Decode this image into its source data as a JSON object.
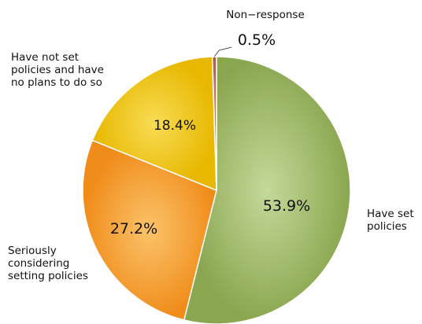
{
  "chart_data": {
    "type": "pie",
    "title": "",
    "slices": [
      {
        "label": "Have set policies",
        "label_lines": [
          "Have set",
          "policies"
        ],
        "value": 53.9,
        "value_label": "53.9%",
        "color": "#9dbb61"
      },
      {
        "label": "Seriously considering setting policies",
        "label_lines": [
          "Seriously",
          "considering",
          "setting policies"
        ],
        "value": 27.2,
        "value_label": "27.2%",
        "color": "#f6a030"
      },
      {
        "label": "Have not set policies and have no plans to do so",
        "label_lines": [
          "Have not set",
          "policies and have",
          "no plans to do so"
        ],
        "value": 18.4,
        "value_label": "18.4%",
        "color": "#f2c80a"
      },
      {
        "label": "Non-response",
        "label_lines": [
          "Non−response"
        ],
        "value": 0.5,
        "value_label": "0.5%",
        "color": "#c8706a"
      }
    ],
    "legend": "none",
    "start_angle": "12 o'clock",
    "direction": "clockwise"
  }
}
